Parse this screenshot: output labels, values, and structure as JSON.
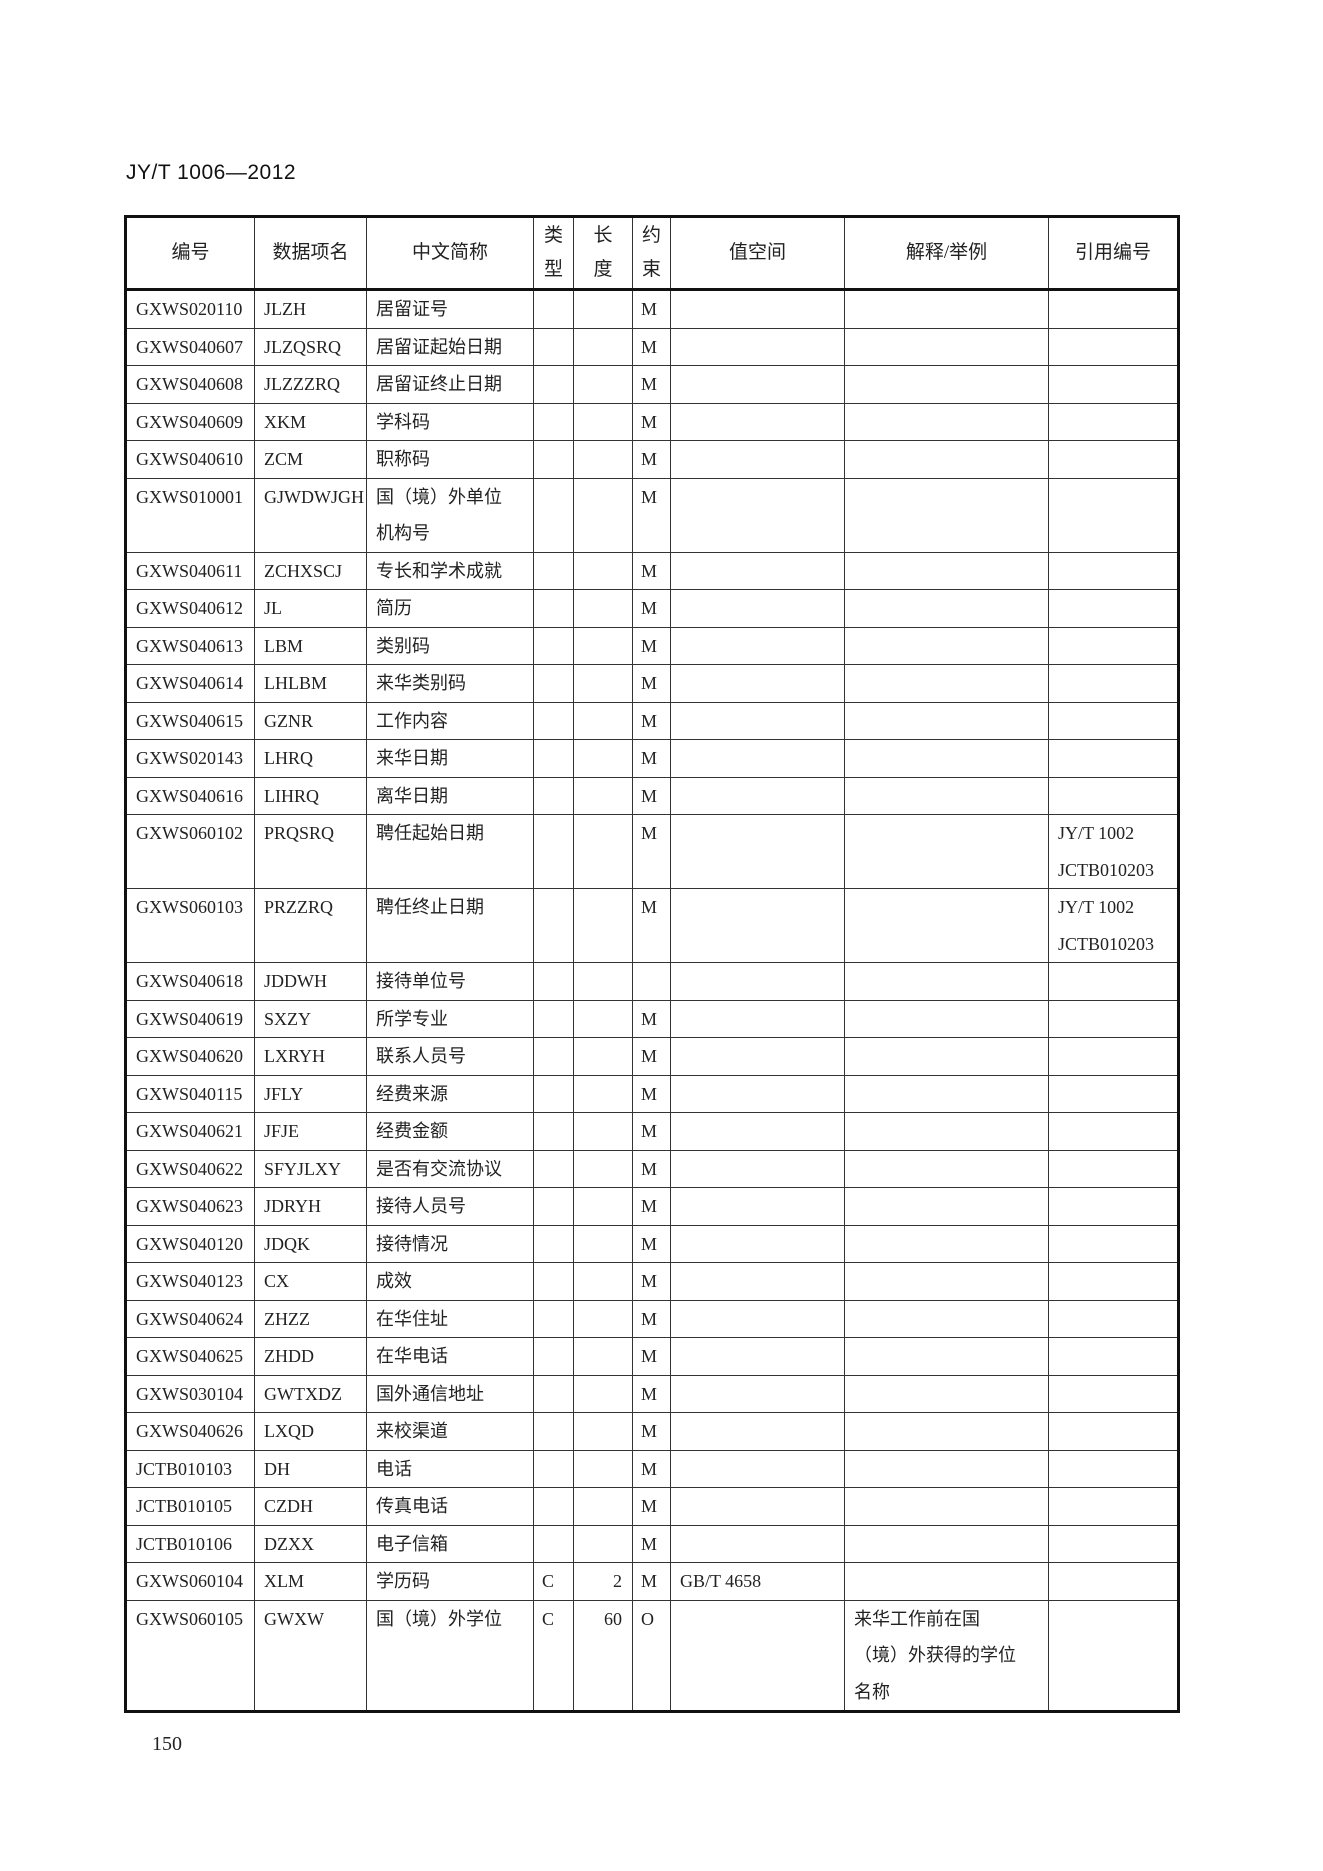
{
  "header": {
    "doc_id": "JY/T 1006—2012"
  },
  "footer": {
    "page_number": "150"
  },
  "table": {
    "columns": [
      "编号",
      "数据项名",
      "中文简称",
      "类\n型",
      "长\n度",
      "约\n束",
      "值空间",
      "解释/举例",
      "引用编号"
    ],
    "rows": [
      [
        "GXWS020110",
        "JLZH",
        "居留证号",
        "",
        "",
        "M",
        "",
        "",
        ""
      ],
      [
        "GXWS040607",
        "JLZQSRQ",
        "居留证起始日期",
        "",
        "",
        "M",
        "",
        "",
        ""
      ],
      [
        "GXWS040608",
        "JLZZZRQ",
        "居留证终止日期",
        "",
        "",
        "M",
        "",
        "",
        ""
      ],
      [
        "GXWS040609",
        "XKM",
        "学科码",
        "",
        "",
        "M",
        "",
        "",
        ""
      ],
      [
        "GXWS040610",
        "ZCM",
        "职称码",
        "",
        "",
        "M",
        "",
        "",
        ""
      ],
      [
        "GXWS010001",
        "GJWDWJGH",
        "国（境）外单位\n机构号",
        "",
        "",
        "M",
        "",
        "",
        ""
      ],
      [
        "GXWS040611",
        "ZCHXSCJ",
        "专长和学术成就",
        "",
        "",
        "M",
        "",
        "",
        ""
      ],
      [
        "GXWS040612",
        "JL",
        "简历",
        "",
        "",
        "M",
        "",
        "",
        ""
      ],
      [
        "GXWS040613",
        "LBM",
        "类别码",
        "",
        "",
        "M",
        "",
        "",
        ""
      ],
      [
        "GXWS040614",
        "LHLBM",
        "来华类别码",
        "",
        "",
        "M",
        "",
        "",
        ""
      ],
      [
        "GXWS040615",
        "GZNR",
        "工作内容",
        "",
        "",
        "M",
        "",
        "",
        ""
      ],
      [
        "GXWS020143",
        "LHRQ",
        "来华日期",
        "",
        "",
        "M",
        "",
        "",
        ""
      ],
      [
        "GXWS040616",
        "LIHRQ",
        "离华日期",
        "",
        "",
        "M",
        "",
        "",
        ""
      ],
      [
        "GXWS060102",
        "PRQSRQ",
        "聘任起始日期",
        "",
        "",
        "M",
        "",
        "",
        "JY/T 1002\nJCTB010203"
      ],
      [
        "GXWS060103",
        "PRZZRQ",
        "聘任终止日期",
        "",
        "",
        "M",
        "",
        "",
        "JY/T 1002\nJCTB010203"
      ],
      [
        "GXWS040618",
        "JDDWH",
        "接待单位号",
        "",
        "",
        "",
        "",
        "",
        ""
      ],
      [
        "GXWS040619",
        "SXZY",
        "所学专业",
        "",
        "",
        "M",
        "",
        "",
        ""
      ],
      [
        "GXWS040620",
        "LXRYH",
        "联系人员号",
        "",
        "",
        "M",
        "",
        "",
        ""
      ],
      [
        "GXWS040115",
        "JFLY",
        "经费来源",
        "",
        "",
        "M",
        "",
        "",
        ""
      ],
      [
        "GXWS040621",
        "JFJE",
        "经费金额",
        "",
        "",
        "M",
        "",
        "",
        ""
      ],
      [
        "GXWS040622",
        "SFYJLXY",
        "是否有交流协议",
        "",
        "",
        "M",
        "",
        "",
        ""
      ],
      [
        "GXWS040623",
        "JDRYH",
        "接待人员号",
        "",
        "",
        "M",
        "",
        "",
        ""
      ],
      [
        "GXWS040120",
        "JDQK",
        "接待情况",
        "",
        "",
        "M",
        "",
        "",
        ""
      ],
      [
        "GXWS040123",
        "CX",
        "成效",
        "",
        "",
        "M",
        "",
        "",
        ""
      ],
      [
        "GXWS040624",
        "ZHZZ",
        "在华住址",
        "",
        "",
        "M",
        "",
        "",
        ""
      ],
      [
        "GXWS040625",
        "ZHDD",
        "在华电话",
        "",
        "",
        "M",
        "",
        "",
        ""
      ],
      [
        "GXWS030104",
        "GWTXDZ",
        "国外通信地址",
        "",
        "",
        "M",
        "",
        "",
        ""
      ],
      [
        "GXWS040626",
        "LXQD",
        "来校渠道",
        "",
        "",
        "M",
        "",
        "",
        ""
      ],
      [
        "JCTB010103",
        "DH",
        "电话",
        "",
        "",
        "M",
        "",
        "",
        ""
      ],
      [
        "JCTB010105",
        "CZDH",
        "传真电话",
        "",
        "",
        "M",
        "",
        "",
        ""
      ],
      [
        "JCTB010106",
        "DZXX",
        "电子信箱",
        "",
        "",
        "M",
        "",
        "",
        ""
      ],
      [
        "GXWS060104",
        "XLM",
        "学历码",
        "C",
        "2",
        "M",
        "GB/T 4658",
        "",
        ""
      ],
      [
        "GXWS060105",
        "GWXW",
        "国（境）外学位",
        "C",
        "60",
        "O",
        "",
        "来华工作前在国\n（境）外获得的学位\n名称",
        ""
      ]
    ]
  }
}
